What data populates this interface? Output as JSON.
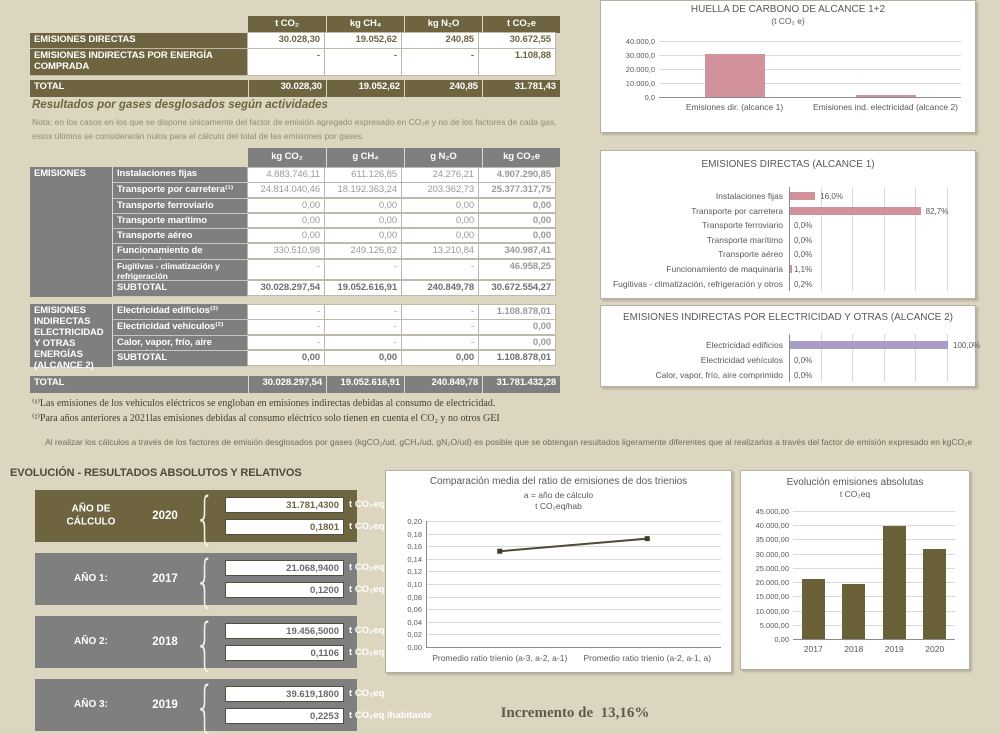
{
  "colors": {
    "background": "#dcd6c1",
    "olive": "#6e6440",
    "gray": "#7f7f7f",
    "pink_bar": "#d2929c",
    "purple_bar": "#a89cc8",
    "olive_bar": "#6b6138",
    "line": "#4f4a36"
  },
  "summary_table": {
    "col_headers": [
      "t CO₂",
      "kg CH₄",
      "kg N₂O",
      "t CO₂e"
    ],
    "rows": [
      {
        "label": "EMISIONES DIRECTAS",
        "values": [
          "30.028,30",
          "19.052,62",
          "240,85",
          "30.672,55"
        ]
      },
      {
        "label": "EMISIONES INDIRECTAS POR ENERGÍA COMPRADA",
        "values": [
          "-",
          "-",
          "-",
          "1.108,88"
        ]
      }
    ],
    "total_row": {
      "label": "TOTAL",
      "values": [
        "30.028,30",
        "19.052,62",
        "240,85",
        "31.781,43"
      ]
    }
  },
  "gases_section": {
    "title": "Resultados por gases desglosados según actividades",
    "note_line1": "Nota: en los casos en los que se dispone únicamente del factor de emisión agregado expresado en CO₂e y no de los factores de cada gas,",
    "note_line2": "estos últimos se considerarán nulos para el cálculo del total de las emisiones por gases.",
    "col_headers": [
      "kg CO₂",
      "g CH₄",
      "g N₂O",
      "kg CO₂e"
    ],
    "scope1": {
      "section_label": "EMISIONES",
      "rows": [
        {
          "label": "Instalaciones fijas",
          "values": [
            "4.883.746,11",
            "611.126,85",
            "24.276,21",
            "4.907.290,85"
          ]
        },
        {
          "label": "Transporte por carretera⁽¹⁾",
          "values": [
            "24.814.040,46",
            "18.192.363,24",
            "203.362,73",
            "25.377.317,75"
          ]
        },
        {
          "label": "Transporte ferroviario",
          "values": [
            "0,00",
            "0,00",
            "0,00",
            "0,00"
          ]
        },
        {
          "label": "Transporte marítimo",
          "values": [
            "0,00",
            "0,00",
            "0,00",
            "0,00"
          ]
        },
        {
          "label": "Transporte aéreo",
          "values": [
            "0,00",
            "0,00",
            "0,00",
            "0,00"
          ]
        },
        {
          "label": "Funcionamiento de maquinaria",
          "values": [
            "330.510,98",
            "249.126,82",
            "13.210,84",
            "340.987,41"
          ]
        },
        {
          "label": "Fugitivas - climatización y refrigeración",
          "values": [
            "-",
            "-",
            "-",
            "46.958,25"
          ]
        }
      ],
      "subtotal": {
        "label": "SUBTOTAL",
        "values": [
          "30.028.297,54",
          "19.052.616,91",
          "240.849,78",
          "30.672.554,27"
        ]
      }
    },
    "scope2": {
      "section_label": "EMISIONES INDIRECTAS ELECTRICIDAD Y OTRAS ENERGÍAS (ALCANCE 2)",
      "rows": [
        {
          "label": "Electricidad edificios⁽²⁾",
          "values": [
            "-",
            "-",
            "-",
            "1.108.878,01"
          ]
        },
        {
          "label": "Electricidad vehículos⁽²⁾",
          "values": [
            "-",
            "-",
            "-",
            "0,00"
          ]
        },
        {
          "label": "Calor, vapor, frío, aire comprimido",
          "values": [
            "-",
            "-",
            "-",
            "0,00"
          ]
        }
      ],
      "subtotal": {
        "label": "SUBTOTAL",
        "values": [
          "0,00",
          "0,00",
          "0,00",
          "1.108.878,01"
        ]
      }
    },
    "total_row": {
      "label": "TOTAL",
      "values": [
        "30.028.297,54",
        "19.052.616,91",
        "240.849,78",
        "31.781.432,28"
      ]
    },
    "footnote1": "⁽¹⁾Las emisiones de los vehículos eléctricos se engloban en emisiones indirectas debidas al consumo de electricidad.",
    "footnote2": "⁽²⁾Para años anteriores a 2021las emisiones debidas al consumo eléctrico solo tienen en cuenta el CO₂ y no otros GEI",
    "calc_note": "Al realizar los cálculos a través de los factores de emisión desglosados por gases (kgCO₂/ud, gCH₄/ud, gN₂O/ud) es posible que se obtengan resultados ligeramente diferentes que al realizarlos a través del factor de emisión expresado en kgCO₂e"
  },
  "evolution": {
    "heading": "EVOLUCIÓN - RESULTADOS ABSOLUTOS Y RELATIVOS",
    "unit_total": "t CO₂eq",
    "unit_per_capita": "t CO₂eq /habitante",
    "years": [
      {
        "label": "AÑO DE CÁLCULO",
        "year": "2020",
        "total": "31.781,4300",
        "per_capita": "0,1801",
        "theme": "olive"
      },
      {
        "label": "AÑO 1:",
        "year": "2017",
        "total": "21.068,9400",
        "per_capita": "0,1200",
        "theme": "gray"
      },
      {
        "label": "AÑO 2:",
        "year": "2018",
        "total": "19.456,5000",
        "per_capita": "0,1106",
        "theme": "gray"
      },
      {
        "label": "AÑO 3:",
        "year": "2019",
        "total": "39.619,1800",
        "per_capita": "0,2253",
        "theme": "gray"
      }
    ],
    "increment_text": "Incremento de  13,16%"
  },
  "chart_data": [
    {
      "type": "bar",
      "title": "HUELLA DE CARBONO DE ALCANCE 1+2",
      "subtitle": "(t CO₂ e)",
      "categories": [
        "Emisiones dir. (alcance 1)",
        "Emisiones ind. electricidad (alcance 2)"
      ],
      "values": [
        30672.55,
        1108.88
      ],
      "ylim": [
        0,
        40000
      ],
      "ytick_labels": [
        "0,0",
        "10.000,0",
        "20.000,0",
        "30.000,0",
        "40.000,0"
      ],
      "grid": true,
      "bar_color": "#d2929c"
    },
    {
      "type": "bar",
      "orientation": "horizontal",
      "title": "EMISIONES DIRECTAS (ALCANCE 1)",
      "categories": [
        "Instalaciones fijas",
        "Transporte por carretera",
        "Transporte ferroviario",
        "Transporte marítimo",
        "Transporte aéreo",
        "Funcionamiento de maquinaria",
        "Fugitivas - climatización, refrigeración y otros"
      ],
      "values": [
        16.0,
        82.7,
        0.0,
        0.0,
        0.0,
        1.1,
        0.2
      ],
      "value_labels": [
        "16,0%",
        "82,7%",
        "0,0%",
        "0,0%",
        "0,0%",
        "1,1%",
        "0,2%"
      ],
      "xlim": [
        0,
        100
      ],
      "grid": true,
      "bar_color": "#d2929c"
    },
    {
      "type": "bar",
      "orientation": "horizontal",
      "title": "EMISIONES INDIRECTAS POR ELECTRICIDAD Y OTRAS (ALCANCE 2)",
      "categories": [
        "Electricidad edificios",
        "Electricidad vehículos",
        "Calor, vapor, frío, aire comprimido"
      ],
      "values": [
        100.0,
        0.0,
        0.0
      ],
      "value_labels": [
        "100,0%",
        "0,0%",
        "0,0%"
      ],
      "xlim": [
        0,
        100
      ],
      "grid": true,
      "bar_color": "#a89cc8"
    },
    {
      "type": "line",
      "title": "Comparación media del ratio de emisiones de dos trienios",
      "subtitle1": "a = año de cálculo",
      "subtitle2": "t CO₂eq/hab",
      "categories": [
        "Promedio ratio trienio (a-3, a-2, a-1)",
        "Promedio ratio trienio (a-2, a-1, a)"
      ],
      "values": [
        0.152,
        0.172
      ],
      "ylim": [
        0,
        0.2
      ],
      "ytick_labels": [
        "0,00",
        "0,02",
        "0,04",
        "0,06",
        "0,08",
        "0,10",
        "0,12",
        "0,14",
        "0,16",
        "0,18",
        "0,20"
      ],
      "grid": true,
      "line_color": "#4f4a36"
    },
    {
      "type": "bar",
      "title": "Evolución emisiones absolutas",
      "subtitle": "t CO₂eq",
      "categories": [
        "2017",
        "2018",
        "2019",
        "2020"
      ],
      "values": [
        21068.94,
        19456.5,
        39619.18,
        31781.43
      ],
      "ylim": [
        0,
        45000
      ],
      "ytick_labels": [
        "0,00",
        "5.000,00",
        "10.000,00",
        "15.000,00",
        "20.000,00",
        "25.000,00",
        "30.000,00",
        "35.000,00",
        "40.000,00",
        "45.000,00"
      ],
      "grid": true,
      "bar_color": "#6b6138"
    }
  ]
}
